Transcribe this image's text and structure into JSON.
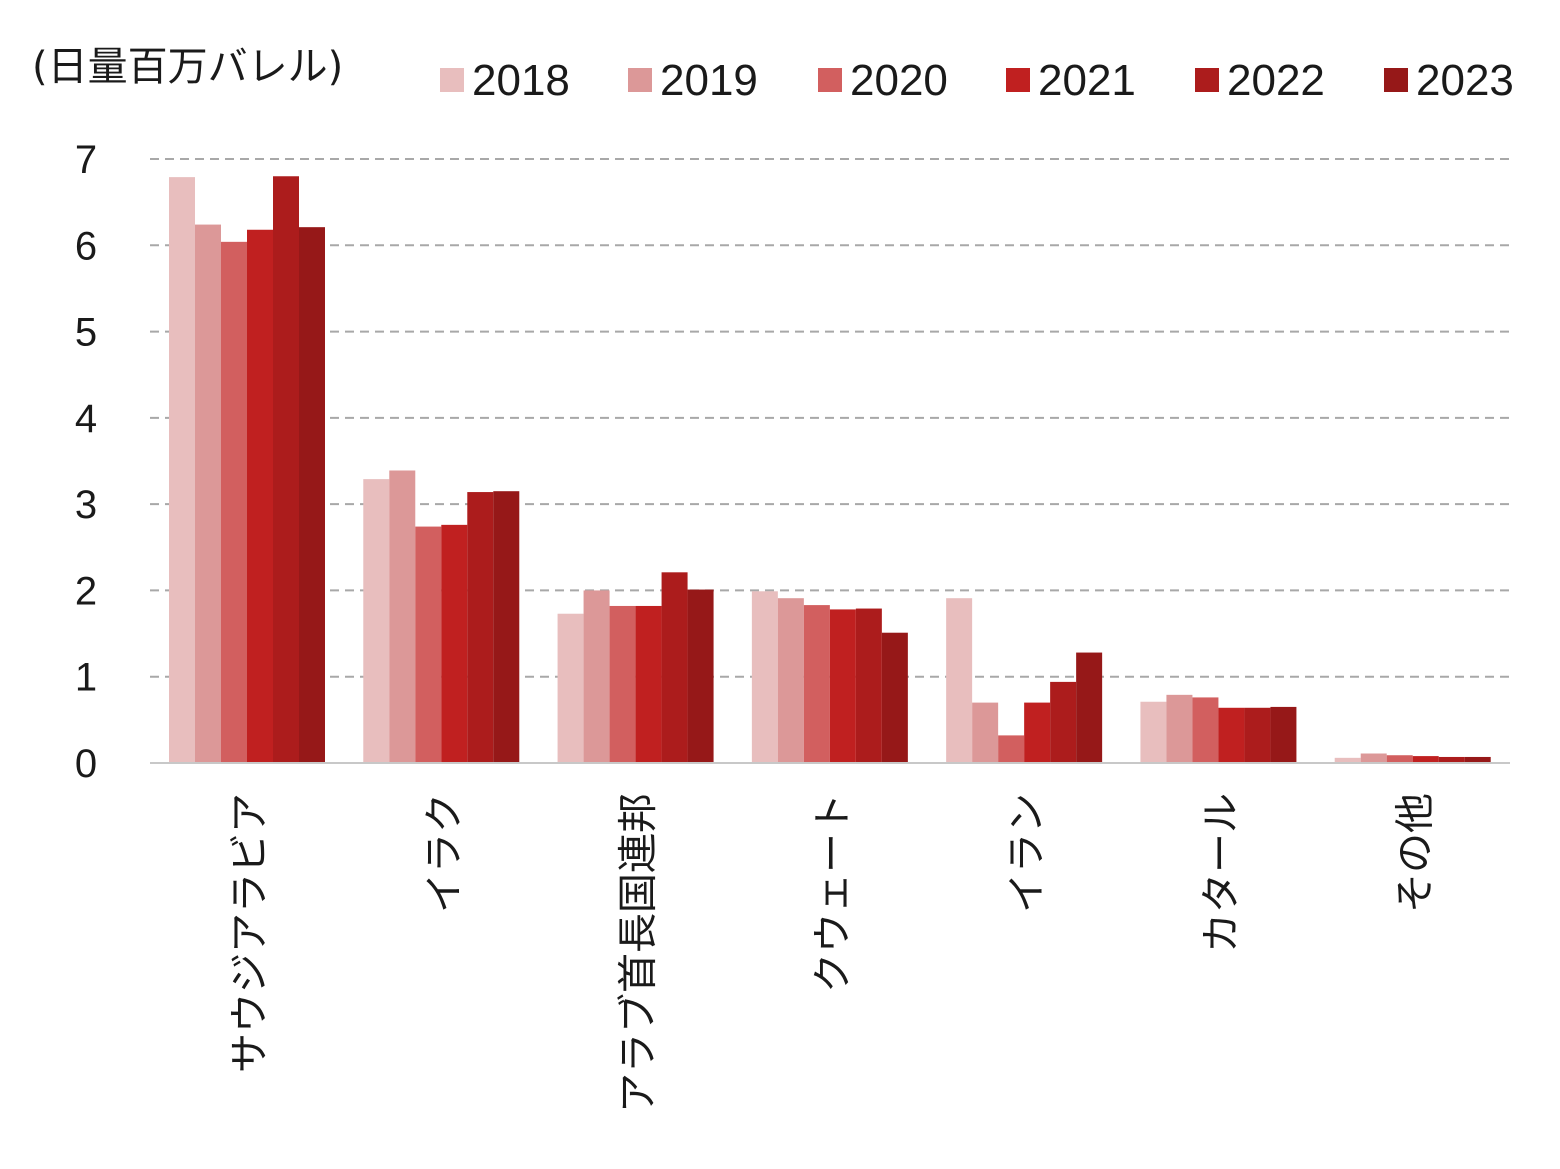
{
  "chart_data": {
    "type": "bar",
    "unit_label": "(日量百万バレル)",
    "categories": [
      "サウジアラビア",
      "イラク",
      "アラブ首長国連邦",
      "クウェート",
      "イラン",
      "カタール",
      "その他"
    ],
    "series": [
      {
        "name": "2018",
        "color": "#e8bebe",
        "values": [
          6.79,
          3.29,
          1.73,
          1.99,
          1.91,
          0.71,
          0.06
        ]
      },
      {
        "name": "2019",
        "color": "#dc9898",
        "values": [
          6.24,
          3.39,
          2.0,
          1.91,
          0.7,
          0.79,
          0.11
        ]
      },
      {
        "name": "2020",
        "color": "#d25f5f",
        "values": [
          6.04,
          2.74,
          1.82,
          1.83,
          0.32,
          0.76,
          0.09
        ]
      },
      {
        "name": "2021",
        "color": "#c02020",
        "values": [
          6.18,
          2.76,
          1.82,
          1.78,
          0.7,
          0.64,
          0.08
        ]
      },
      {
        "name": "2022",
        "color": "#ac1c1c",
        "values": [
          6.8,
          3.14,
          2.21,
          1.79,
          0.94,
          0.64,
          0.07
        ]
      },
      {
        "name": "2023",
        "color": "#961818",
        "values": [
          6.21,
          3.15,
          2.01,
          1.51,
          1.28,
          0.65,
          0.07
        ]
      }
    ],
    "ylim": [
      0,
      7
    ],
    "yticks": [
      0,
      1,
      2,
      3,
      4,
      5,
      6,
      7
    ],
    "grid": true,
    "legend": "top"
  }
}
